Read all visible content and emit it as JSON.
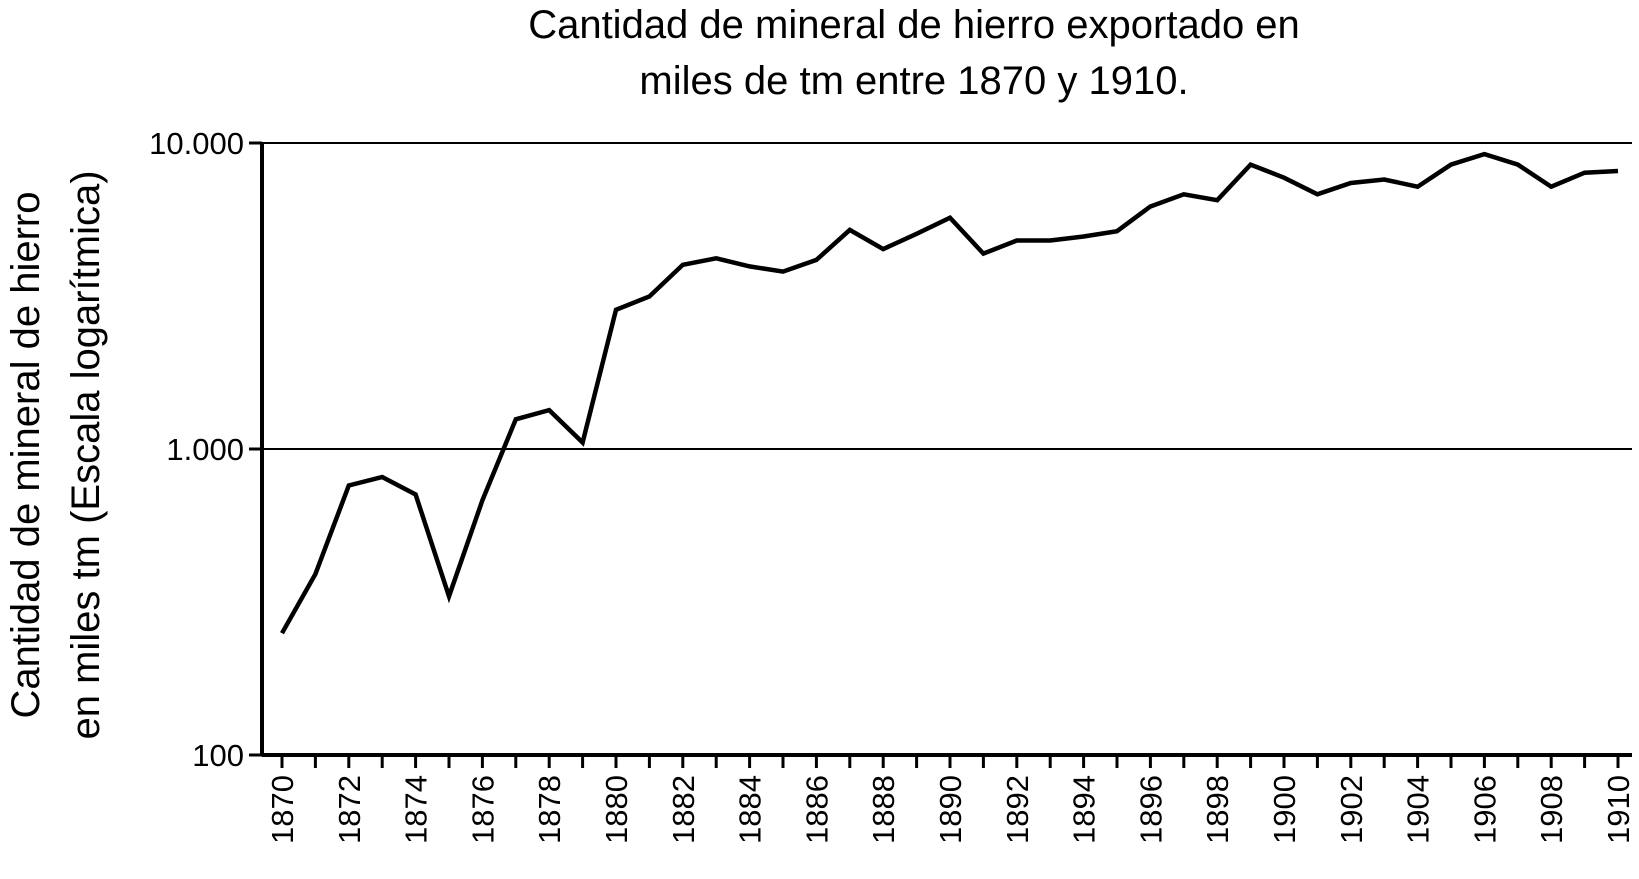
{
  "chart_data": {
    "type": "line",
    "title_lines": [
      "Cantidad de mineral de hierro exportado en",
      "miles de tm entre 1870 y 1910."
    ],
    "ylabel_lines": [
      "Cantidad de mineral de hierro",
      "en miles tm (Escala logarítmica)"
    ],
    "xlabel": "",
    "y_scale": "log",
    "ylim": [
      100,
      10000
    ],
    "y_ticks": [
      {
        "value": 100,
        "label": "100"
      },
      {
        "value": 1000,
        "label": "1.000"
      },
      {
        "value": 10000,
        "label": "10.000"
      }
    ],
    "grid": "horizontal",
    "x_ticks": [
      "1870",
      "1872",
      "1874",
      "1876",
      "1878",
      "1880",
      "1882",
      "1884",
      "1886",
      "1888",
      "1890",
      "1892",
      "1894",
      "1896",
      "1898",
      "1900",
      "1902",
      "1904",
      "1906",
      "1908",
      "1910"
    ],
    "x": [
      1870,
      1871,
      1872,
      1873,
      1874,
      1875,
      1876,
      1877,
      1878,
      1879,
      1880,
      1881,
      1882,
      1883,
      1884,
      1885,
      1886,
      1887,
      1888,
      1889,
      1890,
      1891,
      1892,
      1893,
      1894,
      1895,
      1896,
      1897,
      1898,
      1899,
      1900,
      1901,
      1902,
      1903,
      1904,
      1905,
      1906,
      1907,
      1908,
      1909,
      1910
    ],
    "series": [
      {
        "color": "#000000",
        "values": [
          250,
          390,
          760,
          810,
          710,
          330,
          680,
          1250,
          1340,
          1050,
          2850,
          3150,
          4000,
          4200,
          3950,
          3800,
          4150,
          5200,
          4500,
          5050,
          5700,
          4350,
          4800,
          4800,
          4950,
          5150,
          6200,
          6800,
          6500,
          8500,
          7700,
          6800,
          7400,
          7600,
          7200,
          8500,
          9200,
          8500,
          7200,
          8000,
          8100
        ]
      }
    ]
  }
}
